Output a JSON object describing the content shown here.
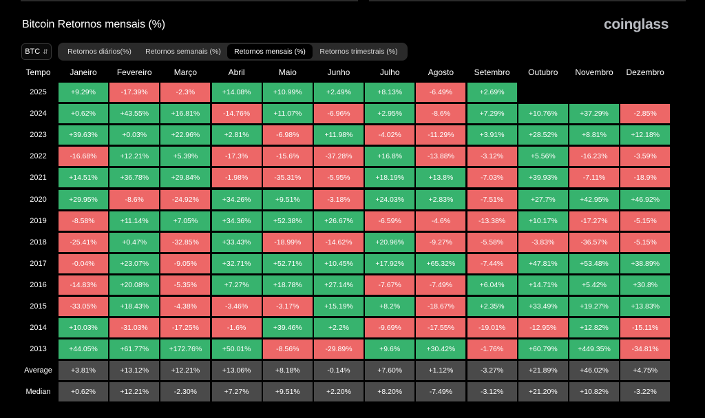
{
  "page": {
    "title": "Bitcoin Retornos mensais (%)",
    "logo": "coinglass",
    "coin_select": "BTC"
  },
  "tabs": [
    {
      "label": "Retornos diários(%)",
      "active": false
    },
    {
      "label": "Retornos semanais (%)",
      "active": false
    },
    {
      "label": "Retornos mensais (%)",
      "active": true
    },
    {
      "label": "Retornos trimestrais (%)",
      "active": false
    }
  ],
  "table": {
    "row_header": "Tempo",
    "months": [
      "Janeiro",
      "Fevereiro",
      "Março",
      "Abril",
      "Maio",
      "Junho",
      "Julho",
      "Agosto",
      "Setembro",
      "Outubro",
      "Novembro",
      "Dezembro"
    ],
    "rows": [
      {
        "label": "2025",
        "values": [
          "+9.29%",
          "-17.39%",
          "-2.3%",
          "+14.08%",
          "+10.99%",
          "+2.49%",
          "+8.13%",
          "-6.49%",
          "+2.69%",
          "",
          "",
          ""
        ]
      },
      {
        "label": "2024",
        "values": [
          "+0.62%",
          "+43.55%",
          "+16.81%",
          "-14.76%",
          "+11.07%",
          "-6.96%",
          "+2.95%",
          "-8.6%",
          "+7.29%",
          "+10.76%",
          "+37.29%",
          "-2.85%"
        ]
      },
      {
        "label": "2023",
        "values": [
          "+39.63%",
          "+0.03%",
          "+22.96%",
          "+2.81%",
          "-6.98%",
          "+11.98%",
          "-4.02%",
          "-11.29%",
          "+3.91%",
          "+28.52%",
          "+8.81%",
          "+12.18%"
        ]
      },
      {
        "label": "2022",
        "values": [
          "-16.68%",
          "+12.21%",
          "+5.39%",
          "-17.3%",
          "-15.6%",
          "-37.28%",
          "+16.8%",
          "-13.88%",
          "-3.12%",
          "+5.56%",
          "-16.23%",
          "-3.59%"
        ]
      },
      {
        "label": "2021",
        "values": [
          "+14.51%",
          "+36.78%",
          "+29.84%",
          "-1.98%",
          "-35.31%",
          "-5.95%",
          "+18.19%",
          "+13.8%",
          "-7.03%",
          "+39.93%",
          "-7.11%",
          "-18.9%"
        ]
      },
      {
        "label": "2020",
        "values": [
          "+29.95%",
          "-8.6%",
          "-24.92%",
          "+34.26%",
          "+9.51%",
          "-3.18%",
          "+24.03%",
          "+2.83%",
          "-7.51%",
          "+27.7%",
          "+42.95%",
          "+46.92%"
        ]
      },
      {
        "label": "2019",
        "values": [
          "-8.58%",
          "+11.14%",
          "+7.05%",
          "+34.36%",
          "+52.38%",
          "+26.67%",
          "-6.59%",
          "-4.6%",
          "-13.38%",
          "+10.17%",
          "-17.27%",
          "-5.15%"
        ]
      },
      {
        "label": "2018",
        "values": [
          "-25.41%",
          "+0.47%",
          "-32.85%",
          "+33.43%",
          "-18.99%",
          "-14.62%",
          "+20.96%",
          "-9.27%",
          "-5.58%",
          "-3.83%",
          "-36.57%",
          "-5.15%"
        ]
      },
      {
        "label": "2017",
        "values": [
          "-0.04%",
          "+23.07%",
          "-9.05%",
          "+32.71%",
          "+52.71%",
          "+10.45%",
          "+17.92%",
          "+65.32%",
          "-7.44%",
          "+47.81%",
          "+53.48%",
          "+38.89%"
        ]
      },
      {
        "label": "2016",
        "values": [
          "-14.83%",
          "+20.08%",
          "-5.35%",
          "+7.27%",
          "+18.78%",
          "+27.14%",
          "-7.67%",
          "-7.49%",
          "+6.04%",
          "+14.71%",
          "+5.42%",
          "+30.8%"
        ]
      },
      {
        "label": "2015",
        "values": [
          "-33.05%",
          "+18.43%",
          "-4.38%",
          "-3.46%",
          "-3.17%",
          "+15.19%",
          "+8.2%",
          "-18.67%",
          "+2.35%",
          "+33.49%",
          "+19.27%",
          "+13.83%"
        ]
      },
      {
        "label": "2014",
        "values": [
          "+10.03%",
          "-31.03%",
          "-17.25%",
          "-1.6%",
          "+39.46%",
          "+2.2%",
          "-9.69%",
          "-17.55%",
          "-19.01%",
          "-12.95%",
          "+12.82%",
          "-15.11%"
        ]
      },
      {
        "label": "2013",
        "values": [
          "+44.05%",
          "+61.77%",
          "+172.76%",
          "+50.01%",
          "-8.56%",
          "-29.89%",
          "+9.6%",
          "+30.42%",
          "-1.76%",
          "+60.79%",
          "+449.35%",
          "-34.81%"
        ]
      }
    ],
    "stats": [
      {
        "label": "Average",
        "values": [
          "+3.81%",
          "+13.12%",
          "+12.21%",
          "+13.06%",
          "+8.18%",
          "-0.14%",
          "+7.60%",
          "+1.12%",
          "-3.27%",
          "+21.89%",
          "+46.02%",
          "+4.75%"
        ]
      },
      {
        "label": "Median",
        "values": [
          "+0.62%",
          "+12.21%",
          "-2.30%",
          "+7.27%",
          "+9.51%",
          "+2.20%",
          "+8.20%",
          "-7.49%",
          "-3.12%",
          "+21.20%",
          "+10.82%",
          "-3.22%"
        ]
      }
    ]
  },
  "colors": {
    "positive": "#37b36e",
    "negative": "#ed6767",
    "stat": "#4a4a4a",
    "background": "#000000"
  }
}
